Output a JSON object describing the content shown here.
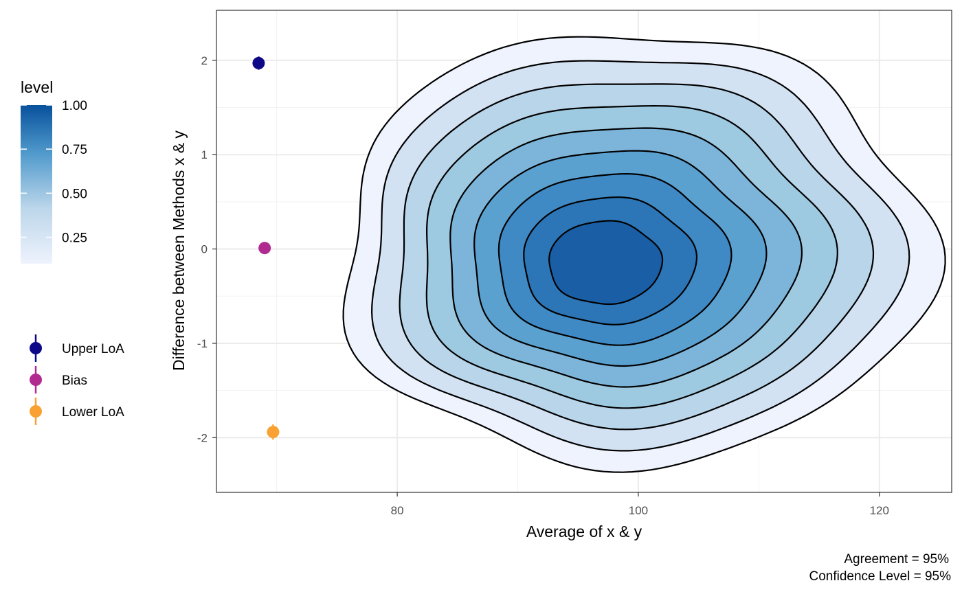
{
  "chart_data": {
    "type": "contour",
    "title": "",
    "xlabel": "Average of x & y",
    "ylabel": "Difference between Methods x & y",
    "xlim": [
      65,
      126
    ],
    "ylim": [
      -2.58,
      2.53
    ],
    "x_ticks": [
      80,
      100,
      120
    ],
    "x_tick_labels": [
      "80",
      "100",
      "120"
    ],
    "y_ticks": [
      -2,
      -1,
      0,
      1,
      2
    ],
    "y_tick_labels": [
      "-2",
      "-1",
      "0",
      "1",
      "2"
    ],
    "grid": true,
    "density": {
      "center": [
        99.5,
        0.0
      ],
      "levels": [
        0.1,
        0.2,
        0.3,
        0.4,
        0.5,
        0.6,
        0.7,
        0.8,
        0.9
      ],
      "fill_low": "#eef3fd",
      "fill_high": "#08519c"
    },
    "series": [
      {
        "name": "Upper LoA",
        "x": 68.5,
        "y": 1.97,
        "ci": [
          1.9,
          2.04
        ],
        "color": "#0d0887"
      },
      {
        "name": "Bias",
        "x": 69.0,
        "y": 0.01,
        "ci": [
          -0.04,
          0.06
        ],
        "color": "#b12a90"
      },
      {
        "name": "Lower LoA",
        "x": 69.7,
        "y": -1.94,
        "ci": [
          -2.02,
          -1.86
        ],
        "color": "#f9a133"
      }
    ],
    "fill_legend": {
      "title": "level",
      "breaks": [
        1.0,
        0.75,
        0.5,
        0.25
      ],
      "labels": [
        "1.00",
        "0.75",
        "0.50",
        "0.25"
      ],
      "range": [
        0.1,
        1.0
      ]
    },
    "legend_position": "left",
    "caption": [
      "Agreement = 95%",
      "Confidence Level = 95%"
    ]
  }
}
